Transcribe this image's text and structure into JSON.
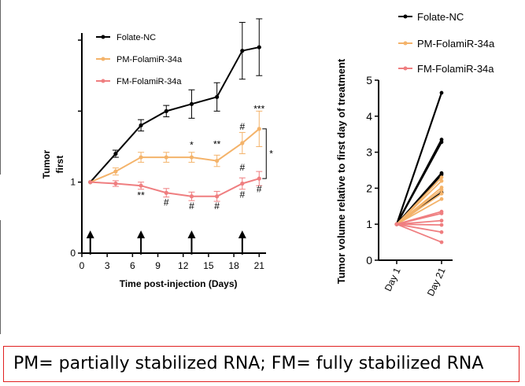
{
  "chart_data": [
    {
      "type": "line",
      "title": "",
      "xlabel": "Time post-injection (Days)",
      "ylabel": "Tumor ... first",
      "ylabel_visible": [
        "Tumor",
        "first"
      ],
      "xlim": [
        0,
        22
      ],
      "ylim": [
        0,
        3.1
      ],
      "xticks": [
        0,
        3,
        6,
        9,
        12,
        15,
        18,
        21
      ],
      "ytick_labels": [
        {
          "value": 0,
          "label": "0"
        },
        {
          "value": 1,
          "label": "1"
        }
      ],
      "extra_yticks": [
        2,
        3
      ],
      "legend_position": "top-left",
      "legend": [
        "Folate-NC",
        "PM-FolamiR-34a",
        "FM-FolamiR-34a"
      ],
      "injection_days": [
        1,
        7,
        13,
        19
      ],
      "series": [
        {
          "name": "Folate-NC",
          "color": "#000000",
          "x": [
            1,
            4,
            7,
            10,
            13,
            16,
            19,
            21
          ],
          "y": [
            1.0,
            1.4,
            1.8,
            2.0,
            2.1,
            2.2,
            2.85,
            2.9
          ],
          "err": [
            0.0,
            0.05,
            0.08,
            0.08,
            0.2,
            0.2,
            0.4,
            0.4
          ]
        },
        {
          "name": "PM-FolamiR-34a",
          "color": "#f4b36a",
          "x": [
            1,
            4,
            7,
            10,
            13,
            16,
            19,
            21
          ],
          "y": [
            1.0,
            1.15,
            1.35,
            1.35,
            1.35,
            1.3,
            1.55,
            1.75
          ],
          "err": [
            0.0,
            0.05,
            0.07,
            0.07,
            0.07,
            0.08,
            0.15,
            0.25
          ]
        },
        {
          "name": "FM-FolamiR-34a",
          "color": "#ef7e80",
          "x": [
            1,
            4,
            7,
            10,
            13,
            16,
            19,
            21
          ],
          "y": [
            1.0,
            0.98,
            0.95,
            0.85,
            0.8,
            0.8,
            0.98,
            1.05
          ],
          "err": [
            0.0,
            0.04,
            0.05,
            0.06,
            0.06,
            0.07,
            0.08,
            0.1
          ]
        }
      ],
      "annotations": [
        {
          "x": 7,
          "y": 0.77,
          "text": "**"
        },
        {
          "x": 10,
          "y": 0.67,
          "text": "#"
        },
        {
          "x": 13,
          "y": 1.48,
          "text": "*"
        },
        {
          "x": 13,
          "y": 0.62,
          "text": "#"
        },
        {
          "x": 16,
          "y": 1.49,
          "text": "**"
        },
        {
          "x": 16,
          "y": 0.62,
          "text": "#"
        },
        {
          "x": 19,
          "y": 1.74,
          "text": "#"
        },
        {
          "x": 19,
          "y": 1.16,
          "text": "#"
        },
        {
          "x": 19,
          "y": 0.78,
          "text": "#"
        },
        {
          "x": 21,
          "y": 1.99,
          "text": "***"
        },
        {
          "x": 21,
          "y": 0.86,
          "text": "#"
        }
      ],
      "bracket_label": "*"
    },
    {
      "type": "line",
      "title": "",
      "ylabel": "Tumor volume relative to first day of treatment",
      "categories": [
        "Day 1",
        "Day 21"
      ],
      "ylim": [
        0,
        5
      ],
      "yticks": [
        0,
        1,
        2,
        3,
        4,
        5
      ],
      "legend_position": "top",
      "legend": [
        "Folate-NC",
        "PM-FolamiR-34a",
        "FM-FolamiR-34a"
      ],
      "series": [
        {
          "name": "Folate-NC",
          "color": "#000000",
          "day21": [
            4.65,
            3.35,
            3.28,
            2.42,
            2.38,
            1.88
          ]
        },
        {
          "name": "PM-FolamiR-34a",
          "color": "#f4b36a",
          "day21": [
            2.3,
            2.2,
            2.02,
            1.95,
            1.85,
            1.7
          ]
        },
        {
          "name": "FM-FolamiR-34a",
          "color": "#ef7e80",
          "day21": [
            1.35,
            1.3,
            1.1,
            0.98,
            0.78,
            0.5
          ]
        }
      ]
    }
  ],
  "caption": "PM= partially stabilized RNA;  FM= fully stabilized RNA"
}
